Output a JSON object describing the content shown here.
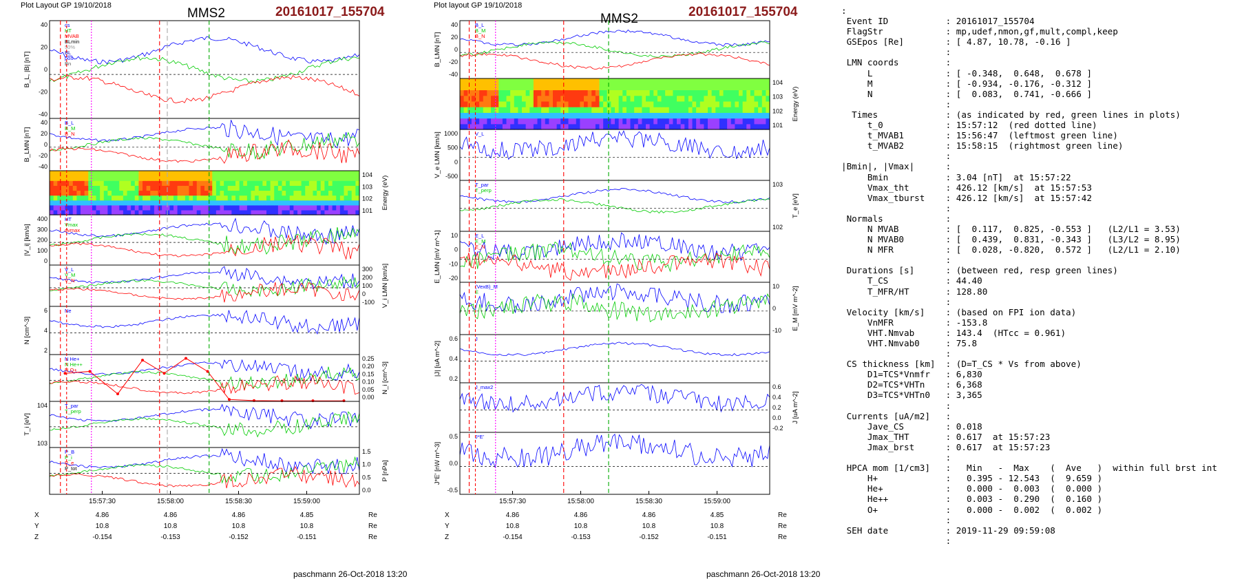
{
  "header": {
    "left_layout": "Plot Layout GP 19/10/2018",
    "right_layout": "Plot layout GP 19/10/2018",
    "spacecraft": "MMS2",
    "event": "20161017_155704"
  },
  "footer": "paschmann 26-Oct-2018 13:20",
  "colors": {
    "event": "#8b1a1a",
    "red_line": "#ff0000",
    "green_line": "#00aa00",
    "magenta_line": "#ff00ff"
  },
  "chart_data": [
    {
      "type": "line",
      "id": "left_stack",
      "x_ticks": [
        "15:57:30",
        "15:58:00",
        "15:58:30",
        "15:59:00"
      ],
      "ephemeris": {
        "rows": [
          {
            "label": "X",
            "values": [
              "4.86",
              "4.86",
              "4.86",
              "4.85"
            ],
            "unit": "Re"
          },
          {
            "label": "Y",
            "values": [
              "10.8",
              "10.8",
              "10.8",
              "10.8"
            ],
            "unit": "Re"
          },
          {
            "label": "Z",
            "values": [
              "-0.154",
              "-0.153",
              "-0.152",
              "-0.151"
            ],
            "unit": "Re"
          }
        ]
      },
      "panels": [
        {
          "ylabel": "B_L, |B| [nT]",
          "ylim": [
            -40,
            40
          ],
          "ticks": [
            "40",
            "20",
            "0",
            "-20",
            "-40"
          ],
          "legend": [
            "cs",
            "HT",
            "MVAB",
            "BLmin",
            "50%",
            "BL",
            "pos",
            "Bn"
          ]
        },
        {
          "ylabel": "B_LMN [nT]",
          "ylim": [
            -40,
            40
          ],
          "ticks": [
            "40",
            "20",
            "0",
            "-20",
            "-40"
          ],
          "legend": [
            "B_L",
            "B_M",
            "B_N"
          ]
        },
        {
          "ylabel": "Energy (eV)",
          "type": "heatmap",
          "ticks": [
            "10^4",
            "10^3",
            "10^2",
            "10^1"
          ]
        },
        {
          "ylabel": "|V_i| [km/s]",
          "ylim": [
            0,
            400
          ],
          "ticks": [
            "400",
            "300",
            "200",
            "100",
            "0"
          ],
          "legend": [
            "HT",
            "Vmax",
            "dvmax"
          ]
        },
        {
          "ylabel": "V_i LMN [km/s]",
          "ylim": [
            -100,
            300
          ],
          "ticks": [
            "300",
            "200",
            "100",
            "0",
            "-100"
          ],
          "legend": [
            "V_L",
            "V_M",
            "V_N"
          ]
        },
        {
          "ylabel": "N [cm^-3]",
          "ylim": [
            0,
            7
          ],
          "ticks": [
            "6",
            "4",
            "2"
          ],
          "legend": [
            "Ne"
          ]
        },
        {
          "ylabel": "N_i [cm^-3]",
          "ylim": [
            0,
            0.25
          ],
          "ticks": [
            "0.25",
            "0.20",
            "0.15",
            "0.10",
            "0.05",
            "0.00"
          ],
          "legend": [
            "N He+",
            "N He++",
            "N O+"
          ],
          "series": [
            {
              "name": "N He++",
              "x": [
                0.05,
                0.13,
                0.22,
                0.3,
                0.37,
                0.44,
                0.51,
                0.58,
                0.66,
                0.75,
                0.85,
                0.95
              ],
              "values": [
                0.15,
                0.16,
                0.04,
                0.22,
                0.15,
                0.23,
                0.16,
                0.01,
                0.004,
                0.003,
                0.003,
                0.003
              ]
            }
          ]
        },
        {
          "ylabel": "T_i [eV]",
          "ticks": [
            "10^4",
            "10^3"
          ],
          "legend": [
            "T_par",
            "T_perp"
          ]
        },
        {
          "ylabel": "P [nPa]",
          "ylim": [
            0,
            1.7
          ],
          "ticks": [
            "1.5",
            "1.0",
            "0.5",
            "0.0"
          ],
          "legend": [
            "P_B",
            "P_i",
            "P_e",
            "P_tot"
          ]
        }
      ]
    },
    {
      "type": "line",
      "id": "right_stack",
      "x_ticks": [
        "15:57:30",
        "15:58:00",
        "15:58:30",
        "15:59:00"
      ],
      "ephemeris": {
        "rows": [
          {
            "label": "X",
            "values": [
              "4.86",
              "4.86",
              "4.86",
              "4.85"
            ],
            "unit": "Re"
          },
          {
            "label": "Y",
            "values": [
              "10.8",
              "10.8",
              "10.8",
              "10.8"
            ],
            "unit": "Re"
          },
          {
            "label": "Z",
            "values": [
              "-0.154",
              "-0.153",
              "-0.152",
              "-0.151"
            ],
            "unit": "Re"
          }
        ]
      },
      "panels": [
        {
          "ylabel": "B_LMN [nT]",
          "ylim": [
            -40,
            40
          ],
          "ticks": [
            "40",
            "20",
            "0",
            "-20",
            "-40"
          ],
          "legend": [
            "B_L",
            "B_M",
            "B_N"
          ]
        },
        {
          "ylabel": "Energy (eV)",
          "type": "heatmap",
          "ticks": [
            "10^4",
            "10^3",
            "10^2",
            "10^1"
          ]
        },
        {
          "ylabel": "V_e LMN [km/s]",
          "ylim": [
            -700,
            1100
          ],
          "ticks": [
            "1000",
            "500",
            "0",
            "-500"
          ],
          "legend": [
            "V_L"
          ]
        },
        {
          "ylabel": "T_e [eV]",
          "ticks": [
            "10^3",
            "10^2"
          ],
          "legend": [
            "T_par",
            "T_perp"
          ]
        },
        {
          "ylabel": "E_LMN [mV m^-1]",
          "ylim": [
            -25,
            15
          ],
          "ticks": [
            "10",
            "0",
            "-10",
            "-20"
          ],
          "legend": [
            "E_L",
            "E_M",
            "E_N"
          ]
        },
        {
          "ylabel": "E_M [mV m^-2]",
          "ylim": [
            -12,
            12
          ],
          "ticks": [
            "10",
            "0",
            "-10"
          ],
          "legend": [
            "(VexB)_M",
            "E"
          ]
        },
        {
          "ylabel": "|J| [uA m^-2]",
          "ylim": [
            0,
            0.6
          ],
          "ticks": [
            "0.6",
            "0.4",
            "0.2"
          ],
          "legend": [
            "J"
          ]
        },
        {
          "ylabel": "J [uA m^-2]",
          "ylim": [
            -0.4,
            0.6
          ],
          "ticks": [
            "0.6",
            "0.4",
            "0.2",
            "0.0",
            "-0.2"
          ],
          "legend": [
            "J_max2"
          ]
        },
        {
          "ylabel": "J*E' [nW m^-3]",
          "ylim": [
            -0.6,
            0.6
          ],
          "ticks": [
            "0.5",
            "0.0",
            "-0.5"
          ],
          "legend": [
            "J*E'"
          ]
        }
      ]
    }
  ],
  "info_lines": [
    ":",
    " Event ID           : 20161017_155704",
    " FlagStr            : mp,udef,nmon,gf,mult,compl,keep",
    " GSEpos [Re]        : [ 4.87, 10.78, -0.16 ]",
    "                    :",
    " LMN coords         :",
    "     L              : [ -0.348,  0.648,  0.678 ]",
    "     M              : [ -0.934, -0.176, -0.312 ]",
    "     N              : [  0.083,  0.741, -0.666 ]",
    "                    :",
    "  Times             : (as indicated by red, green lines in plots)",
    "     t_0            : 15:57:12  (red dotted line)",
    "     t_MVAB1        : 15:56:47  (leftmost green line)",
    "     t_MVAB2        : 15:58:15  (rightmost green line)",
    "                    :",
    "|Bmin|, |Vmax|      :",
    "     Bmin           : 3.04 [nT]  at 15:57:22",
    "     Vmax_tht       : 426.12 [km/s]  at 15:57:53",
    "     Vmax_tburst    : 426.12 [km/s]  at 15:57:42",
    "                    :",
    " Normals            :",
    "     N MVAB         : [  0.117,  0.825, -0.553 ]   (L2/L1 = 3.53)",
    "     N MVAB0        : [  0.439,  0.831, -0.343 ]   (L3/L2 = 8.95)",
    "     N MFR          : [  0.028, -0.820,  0.572 ]   (L2/L1 = 2.10)",
    "                    :",
    " Durations [s]      : (between red, resp green lines)",
    "     T_CS           : 44.40",
    "     T_MFR/HT       : 128.80",
    "                    :",
    " Velocity [km/s]    : (based on FPI ion data)",
    "     VnMFR          : -153.8",
    "     VHT.Nmvab      : 143.4  (HTcc = 0.961)",
    "     VHT.Nmvab0     : 75.8",
    "                    :",
    " CS thickness [km]  : (D=T_CS * Vs from above)",
    "     D1=TCS*Vnmfr   : 6,830",
    "     D2=TCS*VHTn    : 6,368",
    "     D3=TCS*VHTn0   : 3,365",
    "                    :",
    " Currents [uA/m2]   :",
    "     Jave_CS        : 0.018",
    "     Jmax_THT       : 0.617  at 15:57:23",
    "     Jmax_brst      : 0.617  at 15:57:23",
    "                    :",
    " HPCA mom [1/cm3]   :   Min   -  Max    (  Ave   )  within full brst int",
    "     H+             :   0.395 - 12.543  (  9.659 )",
    "     He+            :   0.000 -  0.003  (  0.000 )",
    "     He++           :   0.003 -  0.290  (  0.160 )",
    "     O+             :   0.000 -  0.002  (  0.002 )",
    "                    :",
    " SEH date           : 2019-11-29 09:59:08",
    "                    :"
  ]
}
